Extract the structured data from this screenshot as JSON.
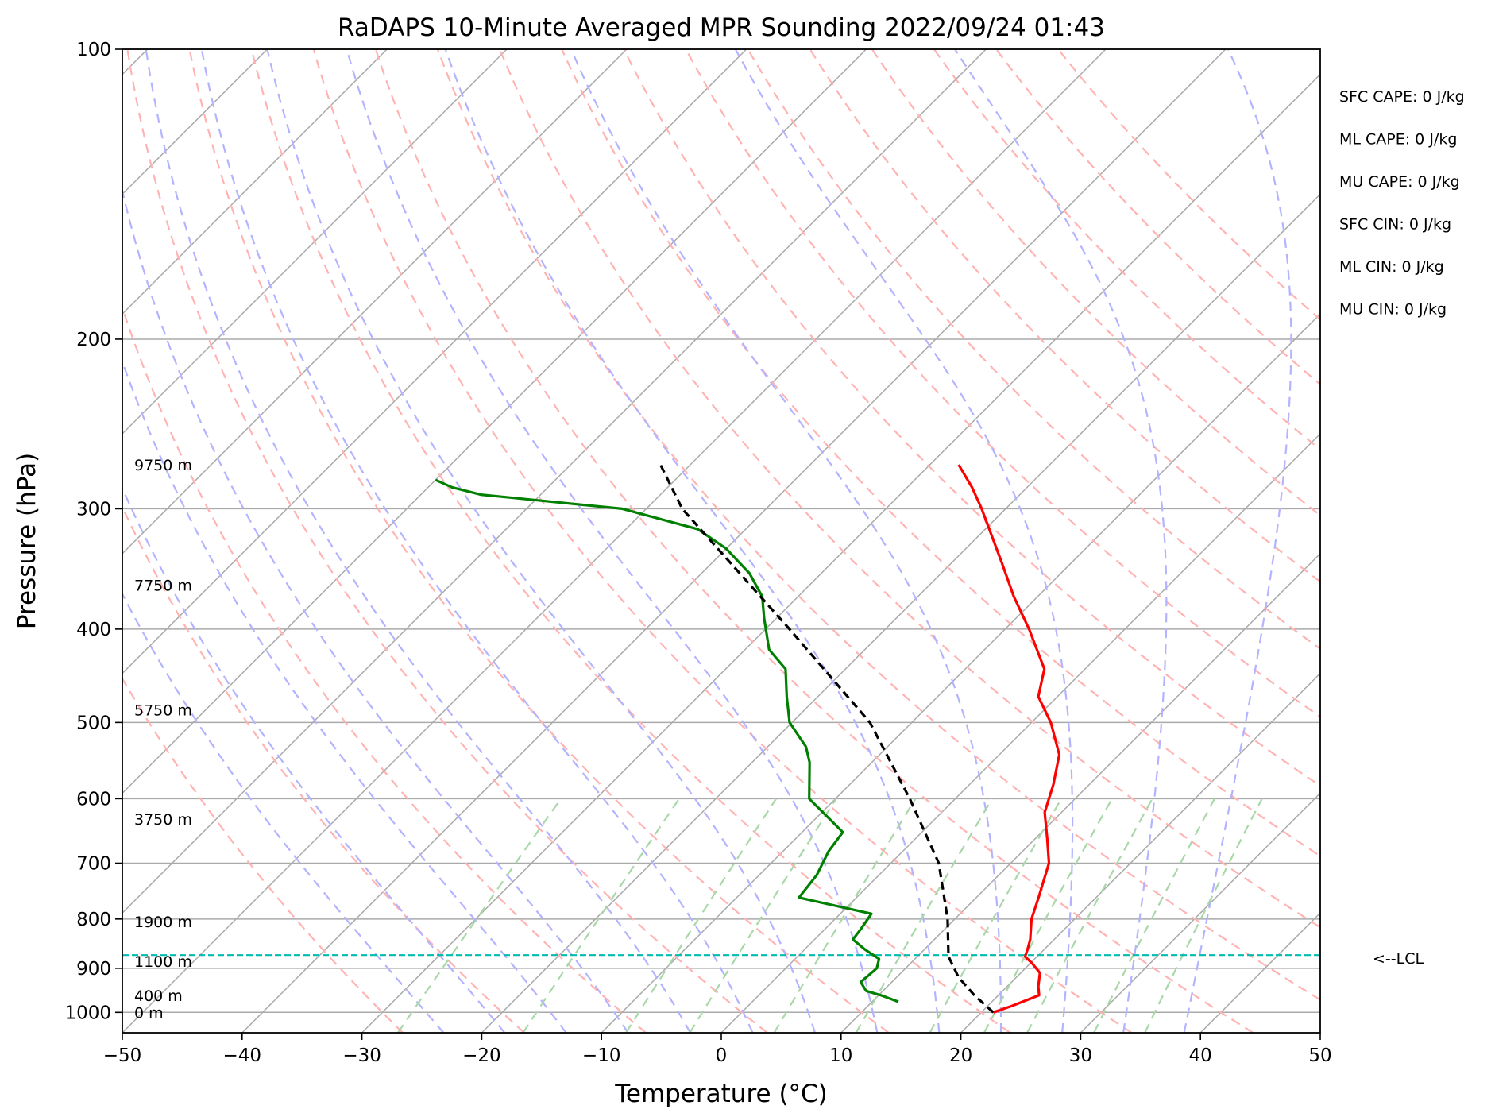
{
  "chart_data": {
    "type": "line",
    "title": "RaDAPS 10-Minute Averaged MPR Sounding 2022/09/24 01:43",
    "xlabel": "Temperature (°C)",
    "ylabel": "Pressure (hPa)",
    "xlim": [
      -50,
      50
    ],
    "ylim": [
      1050,
      100
    ],
    "y_scale": "log",
    "skew": "skew-T log-p",
    "grid": true,
    "x_ticks": [
      "−50",
      "−40",
      "−30",
      "−20",
      "−10",
      "0",
      "10",
      "20",
      "30",
      "40",
      "50"
    ],
    "y_ticks": [
      {
        "p": 100,
        "label": "100"
      },
      {
        "p": 200,
        "label": "200"
      },
      {
        "p": 300,
        "label": "300"
      },
      {
        "p": 400,
        "label": "400"
      },
      {
        "p": 500,
        "label": "500"
      },
      {
        "p": 600,
        "label": "600"
      },
      {
        "p": 700,
        "label": "700"
      },
      {
        "p": 800,
        "label": "800"
      },
      {
        "p": 900,
        "label": "900"
      },
      {
        "p": 1000,
        "label": "1000"
      }
    ],
    "series": [
      {
        "color": "#ff0000",
        "p": [
          1000,
          985,
          960,
          940,
          910,
          890,
          875,
          860,
          840,
          800,
          760,
          700,
          660,
          620,
          580,
          540,
          500,
          470,
          440,
          400,
          370,
          340,
          300,
          285,
          270
        ],
        "t": [
          21.0,
          22.0,
          23.4,
          22.6,
          21.6,
          20.2,
          19.0,
          18.6,
          18.0,
          16.4,
          15.2,
          13.2,
          11.0,
          8.6,
          7.0,
          5.0,
          1.6,
          -1.6,
          -3.4,
          -8.0,
          -12.0,
          -16.0,
          -22.0,
          -24.6,
          -27.6
        ]
      },
      {
        "color": "#008000",
        "p": [
          975,
          960,
          950,
          930,
          900,
          880,
          860,
          840,
          820,
          790,
          760,
          720,
          680,
          650,
          600,
          550,
          530,
          500,
          470,
          440,
          420,
          390,
          370,
          350,
          330,
          315,
          300,
          290,
          285,
          280
        ],
        "t": [
          12.2,
          10.2,
          8.6,
          7.4,
          7.6,
          7.0,
          5.0,
          3.2,
          3.0,
          2.6,
          -4.8,
          -5.2,
          -6.2,
          -6.6,
          -12.2,
          -15.2,
          -16.8,
          -20.2,
          -22.6,
          -25.0,
          -28.0,
          -31.0,
          -33.0,
          -36.0,
          -40.0,
          -44.0,
          -52.0,
          -65.0,
          -68.0,
          -70.0
        ]
      },
      {
        "color": "#000000",
        "dashed": true,
        "p": [
          1000,
          960,
          920,
          875,
          800,
          700,
          600,
          500,
          400,
          300,
          270
        ],
        "t": [
          21.0,
          18.0,
          15.2,
          12.6,
          9.4,
          4.0,
          -3.8,
          -13.5,
          -28.0,
          -47.0,
          -52.5
        ]
      }
    ],
    "lcl": {
      "p": 872,
      "label": "<--LCL"
    },
    "height_labels": [
      {
        "p": 1000,
        "label": "0 m"
      },
      {
        "p": 960,
        "label": "400 m"
      },
      {
        "p": 885,
        "label": "1100 m"
      },
      {
        "p": 805,
        "label": "1900 m"
      },
      {
        "p": 630,
        "label": "3750 m"
      },
      {
        "p": 485,
        "label": "5750 m"
      },
      {
        "p": 360,
        "label": "7750 m"
      },
      {
        "p": 270,
        "label": "9750 m"
      }
    ],
    "annotations": [
      "SFC CAPE: 0 J/kg",
      "ML CAPE: 0 J/kg",
      "MU CAPE: 0 J/kg",
      "SFC CIN: 0 J/kg",
      "ML CIN: 0 J/kg",
      "MU CIN: 0 J/kg"
    ],
    "colors": {
      "isotherm": "#aaaaaa",
      "dry_adiabat": "#ffb3b3",
      "moist_adiabat": "#b3b3ff",
      "mixing_ratio": "#a8d8a8",
      "lcl": "#00bbb0"
    }
  }
}
